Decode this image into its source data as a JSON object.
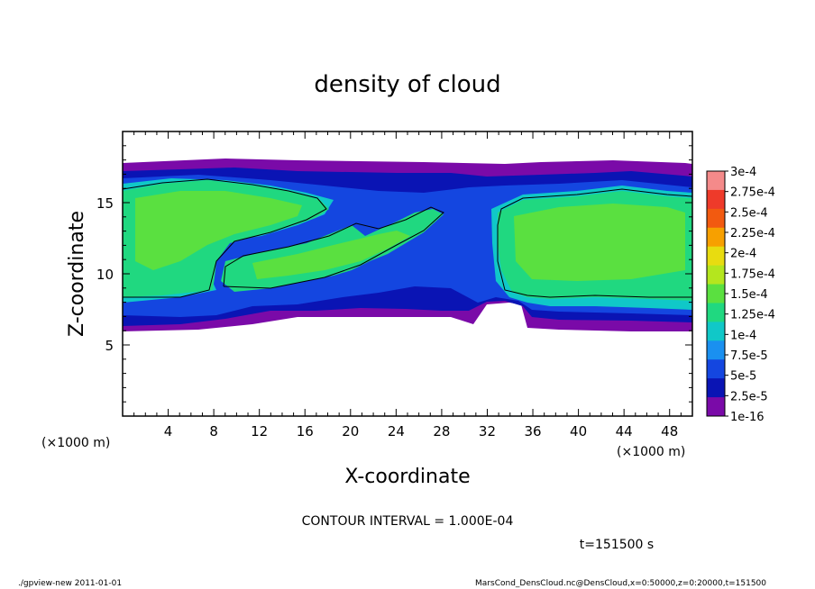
{
  "chart_data": {
    "type": "heatmap",
    "title": "density of cloud",
    "xlabel": "X-coordinate",
    "ylabel": "Z-coordinate",
    "x_unit": "(×1000 m)",
    "y_unit": "(×1000 m)",
    "xlim": [
      0,
      50
    ],
    "ylim": [
      0,
      20
    ],
    "x_ticks": [
      "4",
      "8",
      "12",
      "16",
      "20",
      "24",
      "28",
      "32",
      "36",
      "40",
      "44",
      "48"
    ],
    "y_ticks": [
      "5",
      "10",
      "15"
    ],
    "colorbar": {
      "labels": [
        "3e-4",
        "2.75e-4",
        "2.5e-4",
        "2.25e-4",
        "2e-4",
        "1.75e-4",
        "1.5e-4",
        "1.25e-4",
        "1e-4",
        "7.5e-5",
        "5e-5",
        "2.5e-5",
        "1e-16"
      ],
      "colors": [
        "#f48a8a",
        "#ee3a2a",
        "#f25a10",
        "#f7a000",
        "#e8dc10",
        "#b4e61e",
        "#5ae040",
        "#20d880",
        "#10c8c8",
        "#1a90f0",
        "#1446e0",
        "#0a14b4",
        "#7a0aa8"
      ]
    },
    "contour_interval": "CONTOUR INTERVAL = 1.000E-04",
    "time_label": "t=151500 s",
    "footer_left": "./gpview-new   2011-01-01",
    "footer_right": "MarsCond_DensCloud.nc@DensCloud,x=0:50000,z=0:20000,t=151500"
  }
}
